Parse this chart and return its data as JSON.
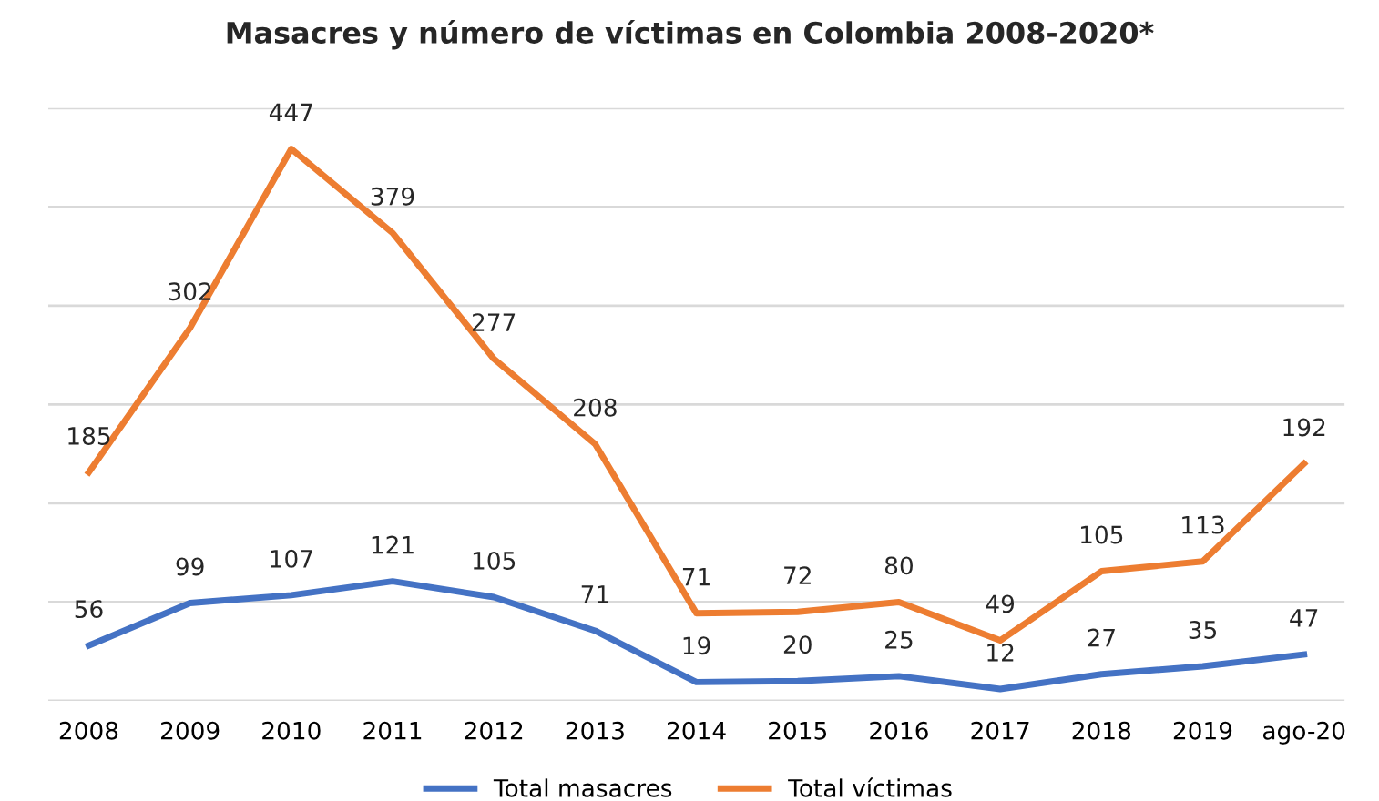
{
  "chart_data": {
    "type": "line",
    "title": "Masacres y número de víctimas en Colombia 2008-2020*",
    "categories": [
      "2008",
      "2009",
      "2010",
      "2011",
      "2012",
      "2013",
      "2014",
      "2015",
      "2016",
      "2017",
      "2018",
      "2019",
      "ago-20"
    ],
    "series": [
      {
        "name": "Total masacres",
        "color": "#4472c4",
        "values": [
          56,
          99,
          107,
          121,
          105,
          71,
          19,
          20,
          25,
          12,
          27,
          35,
          47
        ]
      },
      {
        "name": "Total víctimas",
        "color": "#ed7d31",
        "axis": "y2",
        "values": [
          185,
          302,
          447,
          379,
          277,
          208,
          71,
          72,
          80,
          49,
          105,
          113,
          192
        ]
      }
    ],
    "ylim": [
      0,
      600
    ],
    "yticks": [
      {
        "value": 0,
        "label": null
      },
      {
        "value": 100,
        "label": null
      },
      {
        "value": 200,
        "label": null
      },
      {
        "value": 300,
        "label": null
      },
      {
        "value": 400,
        "label": null
      },
      {
        "value": 500,
        "label": null
      },
      {
        "value": 600,
        "label": null
      }
    ],
    "y2lim": [
      0,
      480
    ],
    "tick_labels": "x",
    "grid": "y",
    "legend": "bottom",
    "marker": "none",
    "line_style": "solid",
    "data_labels": true
  }
}
